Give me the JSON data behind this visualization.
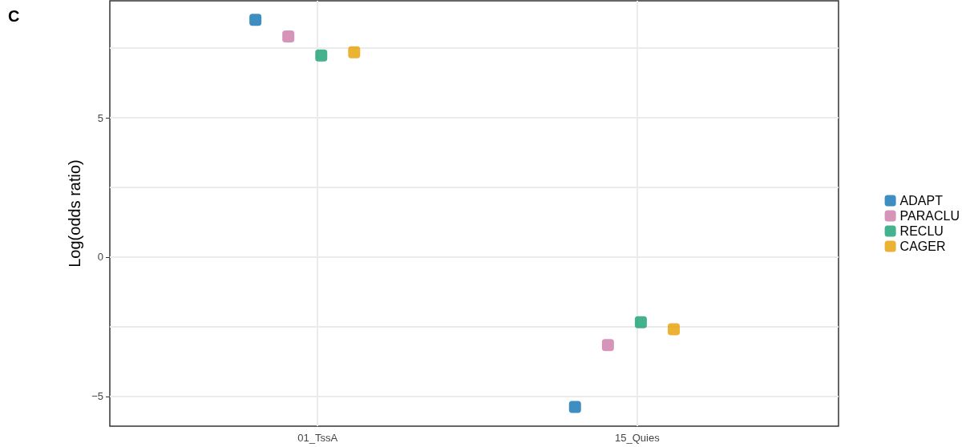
{
  "chart_data": {
    "type": "scatter",
    "title": "C",
    "ylabel": "Log(odds ratio)",
    "categories": [
      "01_TssA",
      "15_Quies"
    ],
    "series": [
      {
        "name": "ADAPT",
        "color": "#0f72b1",
        "values": [
          8.52,
          -5.38
        ]
      },
      {
        "name": "PARACLU",
        "color": "#cc79a7",
        "values": [
          7.92,
          -3.16
        ]
      },
      {
        "name": "RECLU",
        "color": "#159e73",
        "values": [
          7.24,
          -2.34
        ]
      },
      {
        "name": "CAGER",
        "color": "#e69f00",
        "values": [
          7.35,
          -2.59
        ]
      }
    ],
    "ylim": [
      -6.07,
      9.2
    ],
    "yticks": [
      -5,
      {
        "value": -2.5,
        "label": null
      },
      0,
      {
        "value": 2.5,
        "label": null
      },
      5,
      {
        "value": 7.5,
        "label": null
      }
    ],
    "grid": true,
    "legend": "right",
    "marker": "square"
  }
}
